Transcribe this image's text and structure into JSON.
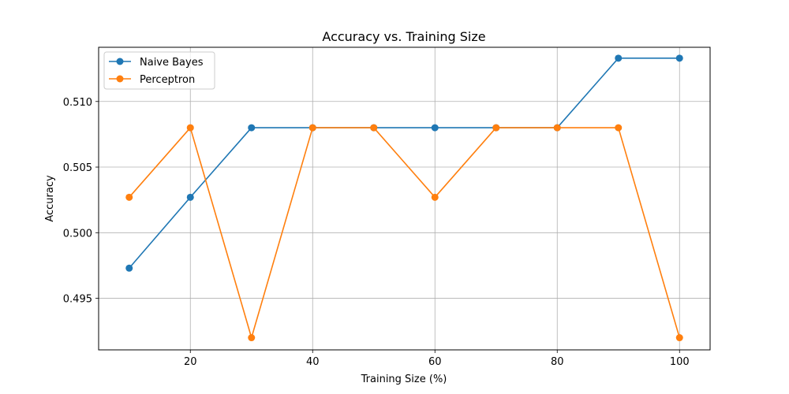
{
  "chart_data": {
    "type": "line",
    "title": "Accuracy vs. Training Size",
    "xlabel": "Training Size (%)",
    "ylabel": "Accuracy",
    "x": [
      10,
      20,
      30,
      40,
      50,
      60,
      70,
      80,
      90,
      100
    ],
    "xlim": [
      5,
      105
    ],
    "ylim": [
      0.49107,
      0.51413
    ],
    "xticks": [
      20,
      40,
      60,
      80,
      100
    ],
    "xtick_labels": [
      "20",
      "40",
      "60",
      "80",
      "100"
    ],
    "yticks": [
      0.495,
      0.5,
      0.505,
      0.51
    ],
    "ytick_labels": [
      "0.495",
      "0.500",
      "0.505",
      "0.510"
    ],
    "grid": true,
    "legend_position": "top-left",
    "series": [
      {
        "name": "Naive Bayes",
        "color": "#1f77b4",
        "marker": "circle",
        "values": [
          0.4973,
          0.5027,
          0.508,
          0.508,
          0.508,
          0.508,
          0.508,
          0.508,
          0.5133,
          0.5133
        ]
      },
      {
        "name": "Perceptron",
        "color": "#ff7f0e",
        "marker": "circle",
        "values": [
          0.5027,
          0.508,
          0.492,
          0.508,
          0.508,
          0.5027,
          0.508,
          0.508,
          0.508,
          0.492
        ]
      }
    ]
  }
}
